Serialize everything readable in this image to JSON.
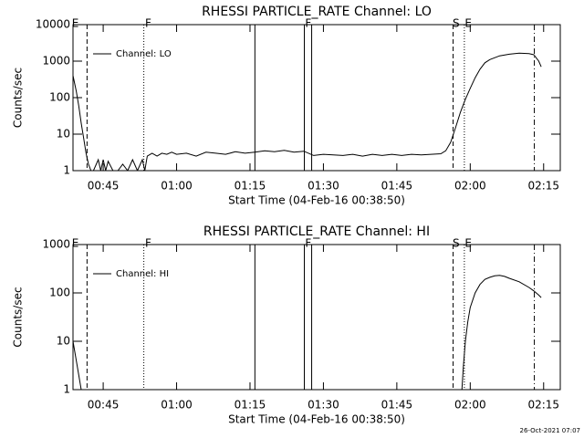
{
  "chart_data": [
    {
      "type": "line",
      "title": "RHESSI PARTICLE_RATE Channel: LO",
      "xlabel": "Start Time (04-Feb-16 00:38:50)",
      "ylabel": "Counts/sec",
      "log_y": true,
      "legend": "upper left",
      "color": "#000000",
      "xlim": [
        38.83,
        138.4
      ],
      "xticks": [
        {
          "value": 45,
          "label": "00:45"
        },
        {
          "value": 60,
          "label": "01:00"
        },
        {
          "value": 75,
          "label": "01:15"
        },
        {
          "value": 90,
          "label": "01:30"
        },
        {
          "value": 105,
          "label": "01:45"
        },
        {
          "value": 120,
          "label": "02:00"
        },
        {
          "value": 135,
          "label": "02:15"
        }
      ],
      "ylim": [
        1,
        10000
      ],
      "yticks": [
        1,
        10,
        100,
        1000,
        10000
      ],
      "x": [
        38.83,
        39.5,
        40,
        40.5,
        41,
        41.5,
        42,
        42.5,
        43,
        44,
        44.5,
        45,
        45.5,
        46,
        47,
        48,
        49,
        50,
        51,
        52,
        53,
        53.5,
        54,
        55,
        56,
        57,
        58,
        59,
        60,
        62,
        64,
        66,
        68,
        70,
        72,
        74,
        76,
        78,
        80,
        82,
        84,
        86,
        88,
        90,
        92,
        94,
        96,
        98,
        100,
        102,
        104,
        106,
        108,
        110,
        112,
        114,
        115,
        116,
        117,
        118,
        119,
        120,
        121,
        122,
        123,
        124,
        126,
        128,
        130,
        132,
        133,
        134,
        134.5
      ],
      "series": [
        {
          "name": "Channel: LO",
          "color": "#000000",
          "values": [
            400,
            150,
            60,
            20,
            8,
            3,
            1.5,
            1,
            1,
            2,
            1,
            2,
            1,
            1.8,
            1,
            1,
            1.5,
            1,
            2,
            1,
            2,
            1,
            2.5,
            3,
            2.5,
            3,
            2.8,
            3.2,
            2.8,
            3,
            2.5,
            3.2,
            3,
            2.8,
            3.3,
            3,
            3.2,
            3.5,
            3.3,
            3.6,
            3.2,
            3.4,
            2.6,
            2.8,
            2.7,
            2.6,
            2.8,
            2.5,
            2.8,
            2.6,
            2.8,
            2.6,
            2.8,
            2.7,
            2.8,
            2.9,
            3.5,
            6,
            15,
            40,
            90,
            180,
            350,
            600,
            900,
            1100,
            1400,
            1550,
            1650,
            1600,
            1500,
            1000,
            700
          ]
        }
      ],
      "vlines": [
        {
          "x": 41.7,
          "style": "dashed"
        },
        {
          "x": 53.3,
          "style": "dotted"
        },
        {
          "x": 76.0,
          "style": "solid"
        },
        {
          "x": 86.1,
          "style": "solid"
        },
        {
          "x": 87.6,
          "style": "solid"
        },
        {
          "x": 116.5,
          "style": "dashed"
        },
        {
          "x": 118.8,
          "style": "dotted"
        },
        {
          "x": 133.1,
          "style": "dashdot"
        }
      ],
      "annotations": [
        {
          "text": "E",
          "x": 39.3
        },
        {
          "text": "F",
          "x": 54.2
        },
        {
          "text": "F",
          "x": 86.9
        },
        {
          "text": "S",
          "x": 117.1
        },
        {
          "text": "E",
          "x": 119.6
        }
      ]
    },
    {
      "type": "line",
      "title": "RHESSI PARTICLE_RATE Channel: HI",
      "xlabel": "Start Time (04-Feb-16 00:38:50)",
      "ylabel": "Counts/sec",
      "log_y": true,
      "legend": "upper left",
      "color": "#000000",
      "xlim": [
        38.83,
        138.4
      ],
      "xticks": [
        {
          "value": 45,
          "label": "00:45"
        },
        {
          "value": 60,
          "label": "01:00"
        },
        {
          "value": 75,
          "label": "01:15"
        },
        {
          "value": 90,
          "label": "01:30"
        },
        {
          "value": 105,
          "label": "01:45"
        },
        {
          "value": 120,
          "label": "02:00"
        },
        {
          "value": 135,
          "label": "02:15"
        }
      ],
      "ylim": [
        1,
        1000
      ],
      "yticks": [
        1,
        10,
        100,
        1000
      ],
      "x": [
        38.83,
        39.5,
        40,
        40.5,
        80,
        118.3,
        118.6,
        119,
        119.5,
        120,
        121,
        122,
        123,
        124,
        125,
        126,
        127,
        128,
        130,
        132,
        133,
        134,
        134.5
      ],
      "series": [
        {
          "name": "Channel: HI",
          "color": "#000000",
          "values": [
            10,
            4,
            2,
            1,
            null,
            1,
            3,
            10,
            25,
            50,
            100,
            150,
            190,
            210,
            225,
            230,
            220,
            200,
            170,
            130,
            110,
            90,
            80
          ]
        }
      ],
      "vlines": [
        {
          "x": 41.7,
          "style": "dashed"
        },
        {
          "x": 53.3,
          "style": "dotted"
        },
        {
          "x": 76.0,
          "style": "solid"
        },
        {
          "x": 86.1,
          "style": "solid"
        },
        {
          "x": 87.6,
          "style": "solid"
        },
        {
          "x": 116.5,
          "style": "dashed"
        },
        {
          "x": 118.8,
          "style": "dotted"
        },
        {
          "x": 133.1,
          "style": "dashdot"
        }
      ],
      "annotations": [
        {
          "text": "E",
          "x": 39.3
        },
        {
          "text": "F",
          "x": 54.2
        },
        {
          "text": "F",
          "x": 86.9
        },
        {
          "text": "S",
          "x": 117.1
        },
        {
          "text": "E",
          "x": 119.6
        }
      ]
    }
  ],
  "footer": "26-Oct-2021 07:07"
}
